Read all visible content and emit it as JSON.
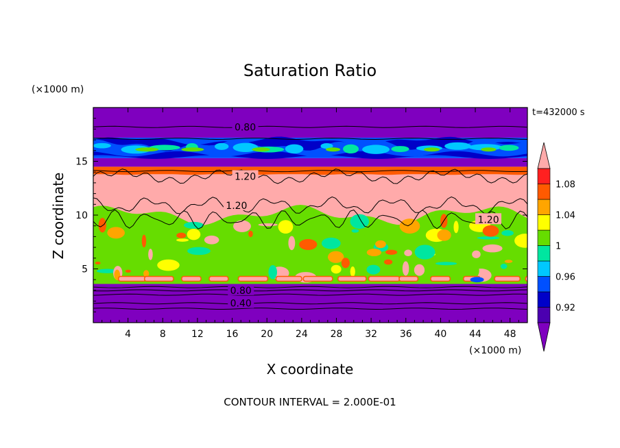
{
  "chart_data": {
    "type": "heatmap",
    "title": "Saturation Ratio",
    "xlabel": "X coordinate",
    "ylabel": "Z coordinate",
    "x_unit": "(×1000 m)",
    "y_unit": "(×1000 m)",
    "time_label": "t=432000 s",
    "footer": "CONTOUR INTERVAL = 2.000E-01",
    "xlim": [
      0,
      50
    ],
    "ylim": [
      0,
      20
    ],
    "x_ticks": [
      4,
      8,
      12,
      16,
      20,
      24,
      28,
      32,
      36,
      40,
      44,
      48
    ],
    "y_ticks": [
      5,
      10,
      15
    ],
    "colorbar": {
      "levels": [
        0.9,
        0.92,
        0.94,
        0.96,
        0.98,
        1.0,
        1.02,
        1.04,
        1.06,
        1.08,
        1.1
      ],
      "tick_labels": [
        "0.92",
        "0.96",
        "1",
        "1.04",
        "1.08"
      ],
      "tick_values": [
        0.92,
        0.96,
        1.0,
        1.04,
        1.08
      ],
      "colors": [
        "#7f00bf",
        "#4b00b0",
        "#0000c8",
        "#0050ff",
        "#00c8ff",
        "#00e6a0",
        "#66dd00",
        "#ffff00",
        "#ffa500",
        "#ff5a00",
        "#ff2020",
        "#ffaaaa"
      ]
    },
    "bands": [
      {
        "z0": 0.0,
        "z1": 3.2,
        "value": 0.5
      },
      {
        "z0": 3.2,
        "z1": 3.6,
        "value": 0.85
      },
      {
        "z0": 3.6,
        "z1": 9.0,
        "value": 1.0
      },
      {
        "z0": 9.0,
        "z1": 13.8,
        "value": 1.25
      },
      {
        "z0": 13.8,
        "z1": 14.5,
        "value": 1.07
      },
      {
        "z0": 14.5,
        "z1": 15.3,
        "value": 0.86
      },
      {
        "z0": 15.3,
        "z1": 17.2,
        "value": 0.95
      },
      {
        "z0": 17.2,
        "z1": 20.0,
        "value": 0.8
      }
    ],
    "contour_labels": [
      {
        "text": "0.80",
        "x": 17.5,
        "z": 18.2
      },
      {
        "text": "1.20",
        "x": 17.5,
        "z": 13.6
      },
      {
        "text": "1.20",
        "x": 16.5,
        "z": 10.9
      },
      {
        "text": "1.20",
        "x": 45.5,
        "z": 9.6
      },
      {
        "text": "0.80",
        "x": 17.0,
        "z": 3.0
      },
      {
        "text": "0.40",
        "x": 17.0,
        "z": 1.8
      }
    ]
  }
}
